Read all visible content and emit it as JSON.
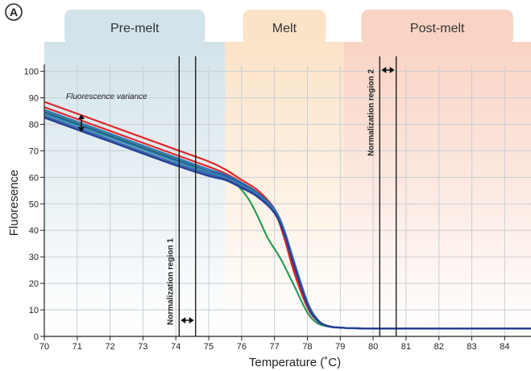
{
  "panel_letter": "A",
  "chart_data": {
    "type": "line",
    "title": "",
    "xlabel": "Temperature (˚C)",
    "ylabel": "Fluoresence",
    "xlim": [
      70,
      84.8
    ],
    "ylim": [
      0,
      102
    ],
    "grid": true,
    "x_ticks": [
      "70",
      "71",
      "72",
      "73",
      "74",
      "75",
      "76",
      "77",
      "78",
      "79",
      "80",
      "81",
      "82",
      "83",
      "84"
    ],
    "y_ticks": [
      "0",
      "10",
      "20",
      "30",
      "40",
      "50",
      "60",
      "70",
      "80",
      "90",
      "100"
    ],
    "regions": [
      {
        "name": "Pre-melt",
        "x_start": 70,
        "x_end": 75.5,
        "color": "#d3e3ea"
      },
      {
        "name": "Melt",
        "x_start": 75.5,
        "x_end": 79.1,
        "color": "#fbe3c8"
      },
      {
        "name": "Post-melt",
        "x_start": 79.1,
        "x_end": 84.8,
        "color": "#f9d3c3"
      }
    ],
    "annotations": {
      "variance_label": "Fluorescence variance",
      "norm1_label": "Normalization region 1",
      "norm2_label": "Normalization region 2",
      "norm1_x": [
        74.1,
        74.6
      ],
      "norm2_x": [
        80.2,
        80.7
      ]
    },
    "series": [
      {
        "color": "#e02828",
        "x": [
          70,
          72,
          74,
          75,
          75.5,
          76,
          76.5,
          77,
          77.3,
          77.6,
          78,
          78.3,
          78.6,
          79,
          80,
          84.8
        ],
        "y": [
          88.5,
          79.5,
          70.5,
          66,
          63,
          59,
          55,
          48,
          38,
          25,
          11,
          6,
          4,
          3.3,
          3,
          3
        ]
      },
      {
        "color": "#e02828",
        "x": [
          70,
          72,
          74,
          75,
          75.5,
          76,
          76.5,
          77,
          77.3,
          77.6,
          78,
          78.3,
          78.6,
          79,
          80,
          84.8
        ],
        "y": [
          86.5,
          77.5,
          68.5,
          64,
          61.5,
          58,
          54,
          47,
          37,
          24,
          11,
          6,
          4,
          3.3,
          3,
          3
        ]
      },
      {
        "color": "#2a9a58",
        "x": [
          70,
          72,
          74,
          75,
          75.5,
          75.8,
          76.2,
          76.5,
          76.8,
          77.2,
          77.6,
          78,
          78.3,
          78.6,
          79,
          80,
          84.8
        ],
        "y": [
          85,
          76,
          67,
          63,
          61,
          58,
          52,
          45,
          37,
          29,
          19,
          9,
          5,
          3.8,
          3.3,
          3,
          3
        ]
      },
      {
        "color": "#3a74b8",
        "x": [
          70,
          72,
          74,
          75,
          75.5,
          76,
          76.5,
          77,
          77.3,
          77.6,
          78,
          78.3,
          78.6,
          79,
          80,
          84.8
        ],
        "y": [
          85.5,
          76.5,
          67.5,
          63,
          61,
          58,
          54,
          47.5,
          39,
          27,
          12,
          6,
          4,
          3.3,
          3,
          3
        ]
      },
      {
        "color": "#2a4fa0",
        "x": [
          70,
          72,
          74,
          75,
          75.5,
          76,
          76.5,
          77,
          77.3,
          77.6,
          78,
          78.3,
          78.6,
          79,
          80,
          84.8
        ],
        "y": [
          84.5,
          75.5,
          66.5,
          62.2,
          60.5,
          57.5,
          54,
          48,
          40,
          28,
          13,
          6.5,
          4,
          3.3,
          3,
          3
        ]
      },
      {
        "color": "#2e8fa8",
        "x": [
          70,
          72,
          74,
          75,
          75.5,
          76,
          76.5,
          77,
          77.3,
          77.6,
          78,
          78.3,
          78.6,
          79,
          80,
          84.8
        ],
        "y": [
          84,
          75,
          66,
          61.8,
          60,
          57,
          53.5,
          47.5,
          39.5,
          27.5,
          12.5,
          6.2,
          4,
          3.3,
          3,
          3
        ]
      },
      {
        "color": "#3a5fb0",
        "x": [
          70,
          72,
          74,
          75,
          75.5,
          76,
          76.5,
          77,
          77.3,
          77.6,
          78,
          78.3,
          78.6,
          79,
          80,
          84.8
        ],
        "y": [
          83.2,
          74.2,
          65.2,
          61.2,
          59.5,
          56.5,
          53,
          47,
          39,
          27,
          12,
          6,
          4,
          3.3,
          3,
          3
        ]
      },
      {
        "color": "#223f94",
        "x": [
          70,
          72,
          74,
          75,
          75.5,
          76,
          76.5,
          77,
          77.3,
          77.6,
          78,
          78.3,
          78.6,
          79,
          80,
          84.8
        ],
        "y": [
          82.5,
          73.5,
          64.5,
          60.5,
          59,
          56,
          52.5,
          46.5,
          38.5,
          26.5,
          12,
          6,
          4,
          3.3,
          3,
          3
        ]
      }
    ]
  }
}
